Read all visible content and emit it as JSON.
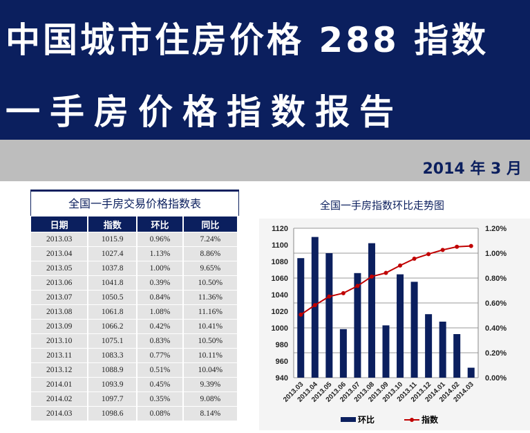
{
  "header": {
    "title_line1": "中国城市住房价格 288 指数",
    "title_line2": "一手房价格指数报告",
    "date": "2014 年 3 月"
  },
  "table": {
    "title": "全国一手房交易价格指数表",
    "columns": [
      "日期",
      "指数",
      "环比",
      "同比"
    ],
    "rows": [
      [
        "2013.03",
        "1015.9",
        "0.96%",
        "7.24%"
      ],
      [
        "2013.04",
        "1027.4",
        "1.13%",
        "8.86%"
      ],
      [
        "2013.05",
        "1037.8",
        "1.00%",
        "9.65%"
      ],
      [
        "2013.06",
        "1041.8",
        "0.39%",
        "10.50%"
      ],
      [
        "2013.07",
        "1050.5",
        "0.84%",
        "11.36%"
      ],
      [
        "2013.08",
        "1061.8",
        "1.08%",
        "11.16%"
      ],
      [
        "2013.09",
        "1066.2",
        "0.42%",
        "10.41%"
      ],
      [
        "2013.10",
        "1075.1",
        "0.83%",
        "10.50%"
      ],
      [
        "2013.11",
        "1083.3",
        "0.77%",
        "10.11%"
      ],
      [
        "2013.12",
        "1088.9",
        "0.51%",
        "10.04%"
      ],
      [
        "2014.01",
        "1093.9",
        "0.45%",
        "9.39%"
      ],
      [
        "2014.02",
        "1097.7",
        "0.35%",
        "9.08%"
      ],
      [
        "2014.03",
        "1098.6",
        "0.08%",
        "8.14%"
      ]
    ]
  },
  "chart_data": {
    "type": "bar+line",
    "title": "全国一手房指数环比走势图",
    "categories": [
      "2013.03",
      "2013.04",
      "2013.05",
      "2013.06",
      "2013.07",
      "2013.08",
      "2013.09",
      "2013.10",
      "2013.11",
      "2013.12",
      "2014.01",
      "2014.02",
      "2014.03"
    ],
    "series": [
      {
        "name": "环比",
        "type": "bar",
        "axis": "right",
        "color": "#0b1f5e",
        "values": [
          0.96,
          1.13,
          1.0,
          0.39,
          0.84,
          1.08,
          0.42,
          0.83,
          0.77,
          0.51,
          0.45,
          0.35,
          0.08
        ]
      },
      {
        "name": "指数",
        "type": "line",
        "axis": "left",
        "color": "#c00000",
        "values": [
          1015.9,
          1027.4,
          1037.8,
          1041.8,
          1050.5,
          1061.8,
          1066.2,
          1075.1,
          1083.3,
          1088.9,
          1093.9,
          1097.7,
          1098.6
        ]
      }
    ],
    "ylim_left": [
      940,
      1120
    ],
    "yticks_left": [
      "940",
      "960",
      "980",
      "1000",
      "1020",
      "1040",
      "1060",
      "1080",
      "1100",
      "1120"
    ],
    "ylim_right": [
      0,
      1.2
    ],
    "yticks_right": [
      "0.00%",
      "0.20%",
      "0.40%",
      "0.60%",
      "0.80%",
      "1.00%",
      "1.20%"
    ],
    "legend": "bottom",
    "grid": true
  }
}
